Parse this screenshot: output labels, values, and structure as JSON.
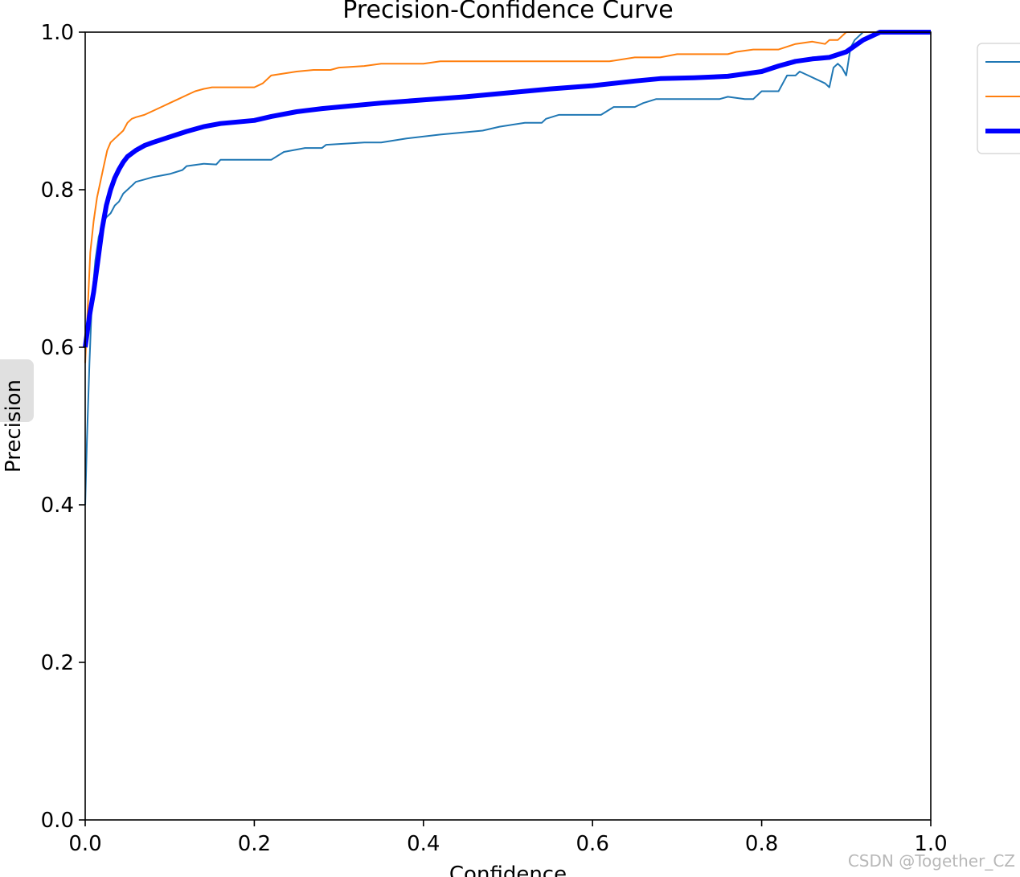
{
  "chart_data": {
    "type": "line",
    "title": "Precision-Confidence Curve",
    "xlabel": "Confidence",
    "ylabel": "Precision",
    "xlim": [
      0,
      1
    ],
    "ylim": [
      0,
      1
    ],
    "xticks": [
      "0.0",
      "0.2",
      "0.4",
      "0.6",
      "0.8",
      "1.0"
    ],
    "yticks": [
      "0.0",
      "0.2",
      "0.4",
      "0.6",
      "0.8",
      "1.0"
    ],
    "grid": false,
    "legend_placement": "right",
    "series": [
      {
        "color": "#1f77b4",
        "width": 2,
        "points": [
          [
            0.0,
            0.4
          ],
          [
            0.002,
            0.48
          ],
          [
            0.005,
            0.58
          ],
          [
            0.008,
            0.66
          ],
          [
            0.012,
            0.71
          ],
          [
            0.016,
            0.74
          ],
          [
            0.02,
            0.755
          ],
          [
            0.025,
            0.765
          ],
          [
            0.03,
            0.77
          ],
          [
            0.035,
            0.78
          ],
          [
            0.04,
            0.785
          ],
          [
            0.045,
            0.795
          ],
          [
            0.05,
            0.8
          ],
          [
            0.055,
            0.805
          ],
          [
            0.06,
            0.81
          ],
          [
            0.07,
            0.813
          ],
          [
            0.08,
            0.816
          ],
          [
            0.09,
            0.818
          ],
          [
            0.1,
            0.82
          ],
          [
            0.115,
            0.825
          ],
          [
            0.12,
            0.83
          ],
          [
            0.14,
            0.833
          ],
          [
            0.155,
            0.832
          ],
          [
            0.16,
            0.838
          ],
          [
            0.2,
            0.838
          ],
          [
            0.22,
            0.838
          ],
          [
            0.235,
            0.848
          ],
          [
            0.26,
            0.853
          ],
          [
            0.28,
            0.853
          ],
          [
            0.285,
            0.857
          ],
          [
            0.33,
            0.86
          ],
          [
            0.35,
            0.86
          ],
          [
            0.38,
            0.865
          ],
          [
            0.42,
            0.87
          ],
          [
            0.47,
            0.875
          ],
          [
            0.49,
            0.88
          ],
          [
            0.52,
            0.885
          ],
          [
            0.54,
            0.885
          ],
          [
            0.545,
            0.89
          ],
          [
            0.56,
            0.895
          ],
          [
            0.58,
            0.895
          ],
          [
            0.61,
            0.895
          ],
          [
            0.625,
            0.905
          ],
          [
            0.65,
            0.905
          ],
          [
            0.66,
            0.91
          ],
          [
            0.675,
            0.915
          ],
          [
            0.7,
            0.915
          ],
          [
            0.75,
            0.915
          ],
          [
            0.76,
            0.918
          ],
          [
            0.78,
            0.915
          ],
          [
            0.79,
            0.915
          ],
          [
            0.8,
            0.925
          ],
          [
            0.82,
            0.925
          ],
          [
            0.825,
            0.935
          ],
          [
            0.83,
            0.945
          ],
          [
            0.84,
            0.945
          ],
          [
            0.845,
            0.95
          ],
          [
            0.855,
            0.945
          ],
          [
            0.865,
            0.94
          ],
          [
            0.875,
            0.935
          ],
          [
            0.88,
            0.93
          ],
          [
            0.885,
            0.955
          ],
          [
            0.89,
            0.96
          ],
          [
            0.895,
            0.955
          ],
          [
            0.9,
            0.945
          ],
          [
            0.905,
            0.98
          ],
          [
            0.91,
            0.99
          ],
          [
            0.92,
            1.0
          ],
          [
            1.0,
            1.0
          ]
        ]
      },
      {
        "color": "#ff7f0e",
        "width": 2,
        "points": [
          [
            0.0,
            0.58
          ],
          [
            0.003,
            0.65
          ],
          [
            0.006,
            0.72
          ],
          [
            0.01,
            0.76
          ],
          [
            0.014,
            0.79
          ],
          [
            0.018,
            0.81
          ],
          [
            0.022,
            0.83
          ],
          [
            0.026,
            0.85
          ],
          [
            0.03,
            0.86
          ],
          [
            0.035,
            0.865
          ],
          [
            0.04,
            0.87
          ],
          [
            0.045,
            0.875
          ],
          [
            0.05,
            0.885
          ],
          [
            0.055,
            0.89
          ],
          [
            0.06,
            0.892
          ],
          [
            0.07,
            0.895
          ],
          [
            0.08,
            0.9
          ],
          [
            0.09,
            0.905
          ],
          [
            0.1,
            0.91
          ],
          [
            0.11,
            0.915
          ],
          [
            0.12,
            0.92
          ],
          [
            0.13,
            0.925
          ],
          [
            0.14,
            0.928
          ],
          [
            0.15,
            0.93
          ],
          [
            0.16,
            0.93
          ],
          [
            0.2,
            0.93
          ],
          [
            0.21,
            0.935
          ],
          [
            0.22,
            0.945
          ],
          [
            0.25,
            0.95
          ],
          [
            0.27,
            0.952
          ],
          [
            0.29,
            0.952
          ],
          [
            0.3,
            0.955
          ],
          [
            0.33,
            0.957
          ],
          [
            0.35,
            0.96
          ],
          [
            0.4,
            0.96
          ],
          [
            0.42,
            0.963
          ],
          [
            0.5,
            0.963
          ],
          [
            0.6,
            0.963
          ],
          [
            0.62,
            0.963
          ],
          [
            0.65,
            0.968
          ],
          [
            0.68,
            0.968
          ],
          [
            0.7,
            0.972
          ],
          [
            0.76,
            0.972
          ],
          [
            0.77,
            0.975
          ],
          [
            0.79,
            0.978
          ],
          [
            0.82,
            0.978
          ],
          [
            0.84,
            0.985
          ],
          [
            0.86,
            0.988
          ],
          [
            0.875,
            0.985
          ],
          [
            0.88,
            0.99
          ],
          [
            0.89,
            0.99
          ],
          [
            0.9,
            1.0
          ],
          [
            0.91,
            1.0
          ],
          [
            1.0,
            1.0
          ]
        ]
      },
      {
        "color": "#0000ff",
        "width": 6,
        "points": [
          [
            0.0,
            0.6
          ],
          [
            0.005,
            0.64
          ],
          [
            0.01,
            0.67
          ],
          [
            0.015,
            0.71
          ],
          [
            0.02,
            0.75
          ],
          [
            0.025,
            0.78
          ],
          [
            0.03,
            0.8
          ],
          [
            0.035,
            0.815
          ],
          [
            0.04,
            0.826
          ],
          [
            0.045,
            0.835
          ],
          [
            0.05,
            0.842
          ],
          [
            0.06,
            0.85
          ],
          [
            0.07,
            0.856
          ],
          [
            0.08,
            0.86
          ],
          [
            0.1,
            0.867
          ],
          [
            0.12,
            0.874
          ],
          [
            0.14,
            0.88
          ],
          [
            0.16,
            0.884
          ],
          [
            0.2,
            0.888
          ],
          [
            0.22,
            0.893
          ],
          [
            0.25,
            0.899
          ],
          [
            0.28,
            0.903
          ],
          [
            0.3,
            0.905
          ],
          [
            0.35,
            0.91
          ],
          [
            0.4,
            0.914
          ],
          [
            0.45,
            0.918
          ],
          [
            0.5,
            0.923
          ],
          [
            0.55,
            0.928
          ],
          [
            0.6,
            0.932
          ],
          [
            0.65,
            0.938
          ],
          [
            0.68,
            0.941
          ],
          [
            0.72,
            0.942
          ],
          [
            0.76,
            0.944
          ],
          [
            0.8,
            0.95
          ],
          [
            0.82,
            0.957
          ],
          [
            0.84,
            0.963
          ],
          [
            0.86,
            0.966
          ],
          [
            0.88,
            0.968
          ],
          [
            0.9,
            0.975
          ],
          [
            0.92,
            0.99
          ],
          [
            0.94,
            1.0
          ],
          [
            1.0,
            1.0
          ]
        ]
      }
    ]
  },
  "watermark": "CSDN @Together_CZ"
}
